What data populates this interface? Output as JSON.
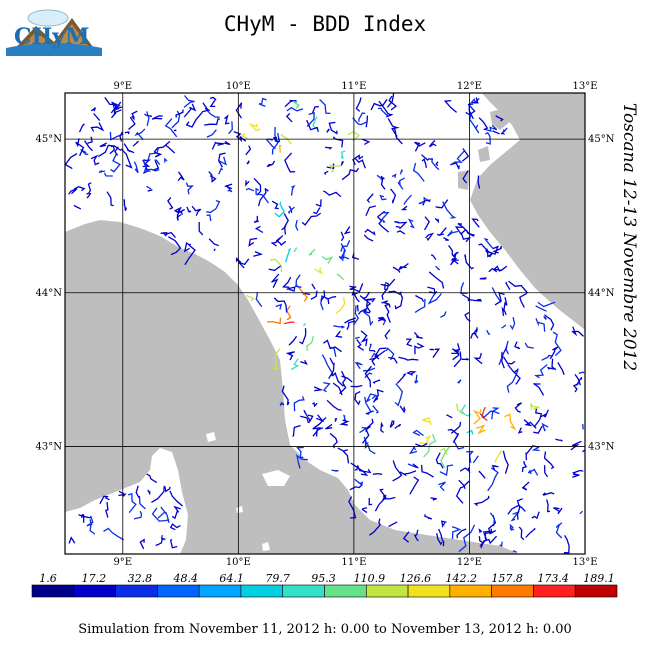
{
  "title": "CHyM - BDD Index",
  "logo": {
    "text": "CHyM",
    "icon": "chym-logo-icon"
  },
  "side_label": "Toscana 12-13 Novembre 2012",
  "caption": "Simulation from November 11, 2012 h: 0.00 to November 13, 2012 h: 0.00",
  "map": {
    "lon_range": [
      8.5,
      13.0
    ],
    "lat_range": [
      42.3,
      45.3
    ],
    "lon_ticks": [
      {
        "value": 9,
        "label": "9°E"
      },
      {
        "value": 10,
        "label": "10°E"
      },
      {
        "value": 11,
        "label": "11°E"
      },
      {
        "value": 12,
        "label": "12°E"
      },
      {
        "value": 13,
        "label": "13°E"
      }
    ],
    "lat_ticks": [
      {
        "value": 45,
        "label": "45°N"
      },
      {
        "value": 44,
        "label": "44°N"
      },
      {
        "value": 43,
        "label": "43°N"
      }
    ],
    "colors": {
      "sea": "#bebebe",
      "land": "#ffffff",
      "grid": "#000000"
    }
  },
  "legend": {
    "labels": [
      "1.6",
      "17.2",
      "32.8",
      "48.4",
      "64.1",
      "79.7",
      "95.3",
      "110.9",
      "126.6",
      "142.2",
      "157.8",
      "173.4",
      "189.1"
    ],
    "colors": [
      "#00008b",
      "#0000cd",
      "#0a2ee6",
      "#0066ff",
      "#00a6ff",
      "#00d0e0",
      "#33e0c8",
      "#66e08a",
      "#c0e640",
      "#f0e020",
      "#ffb000",
      "#ff7a00",
      "#ff2020",
      "#c00000"
    ]
  }
}
